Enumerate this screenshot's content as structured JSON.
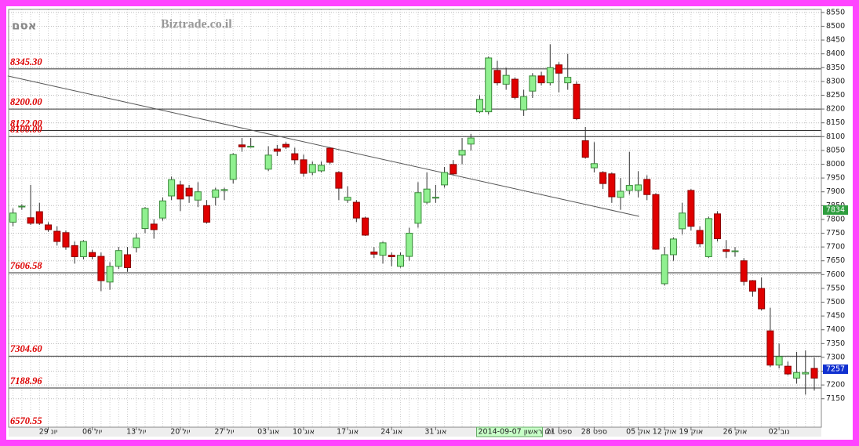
{
  "chart_data": {
    "type": "candlestick",
    "title": "אסם",
    "watermark": "Biztrade.co.il",
    "x": [
      0,
      1,
      2,
      3,
      4,
      5,
      6,
      7,
      8,
      9,
      10,
      11,
      12,
      13,
      14,
      15,
      16,
      17,
      18,
      19,
      20,
      21,
      22,
      23,
      24,
      25,
      26,
      27,
      29,
      30,
      31,
      32,
      33,
      34,
      35,
      36,
      37,
      38,
      39,
      40,
      41,
      42,
      43,
      44,
      45,
      46,
      47,
      48,
      49,
      50,
      51,
      52,
      53,
      54,
      55,
      56,
      57,
      58,
      59,
      60,
      61,
      62,
      63,
      64,
      65,
      66,
      67,
      68,
      69,
      70,
      71,
      72,
      73,
      74,
      75,
      76,
      77,
      78,
      79,
      80,
      81,
      82,
      83,
      84,
      85,
      86,
      87,
      88,
      89,
      90,
      91
    ],
    "series": [
      {
        "open": [
          7790,
          7845,
          7806,
          7828,
          7780,
          7757,
          7752,
          7705,
          7665,
          7680,
          7666,
          7573,
          7630,
          7672,
          7698,
          7767,
          7783,
          7805,
          7885,
          7925,
          7913,
          7870,
          7850,
          7880,
          7905,
          7945,
          8070,
          8062,
          7982,
          8055,
          8072,
          8038,
          8016,
          7970,
          7976,
          8058,
          7970,
          7870,
          7862,
          7805,
          7682,
          7670,
          7670,
          7630,
          7666,
          7786,
          7862,
          7878,
          7925,
          7999,
          8033,
          8073,
          8190,
          8190,
          8340,
          8290,
          8308,
          8197,
          8265,
          8320,
          8295,
          8360,
          8295,
          8290,
          8085,
          7987,
          7970,
          7965,
          7880,
          7905,
          7905,
          7945,
          7890,
          7567,
          7672,
          7766,
          7905,
          7760,
          7665,
          7820,
          7690,
          7683,
          7650,
          7578,
          7550,
          7396,
          7272,
          7268,
          7225,
          7240,
          7260
        ],
        "high": [
          7840,
          7855,
          7925,
          7860,
          7790,
          7775,
          7760,
          7720,
          7725,
          7690,
          7680,
          7645,
          7700,
          7700,
          7750,
          7845,
          7800,
          7880,
          7955,
          7940,
          7925,
          7935,
          7870,
          7915,
          7915,
          8040,
          8095,
          8095,
          8065,
          8070,
          8080,
          8060,
          8035,
          8010,
          8010,
          8060,
          7975,
          7920,
          7870,
          7810,
          7700,
          7720,
          7680,
          7680,
          7770,
          7935,
          7970,
          7925,
          7990,
          8015,
          8095,
          8110,
          8250,
          8390,
          8375,
          8350,
          8315,
          8270,
          8330,
          8335,
          8435,
          8370,
          8400,
          8300,
          8135,
          8080,
          7975,
          7970,
          7950,
          8045,
          7975,
          7960,
          7895,
          7700,
          7735,
          7860,
          7910,
          7775,
          7810,
          7830,
          7725,
          7700,
          7660,
          7580,
          7590,
          7480,
          7350,
          7285,
          7320,
          7325,
          7300
        ],
        "low": [
          7775,
          7835,
          7780,
          7780,
          7755,
          7705,
          7690,
          7640,
          7655,
          7655,
          7540,
          7545,
          7620,
          7610,
          7680,
          7750,
          7730,
          7795,
          7870,
          7830,
          7860,
          7845,
          7785,
          7850,
          7870,
          7930,
          8045,
          8060,
          7975,
          8030,
          8055,
          8000,
          7955,
          7960,
          7970,
          8000,
          7870,
          7860,
          7790,
          7740,
          7660,
          7640,
          7630,
          7625,
          7650,
          7770,
          7855,
          7860,
          7915,
          7960,
          8000,
          8050,
          8185,
          8180,
          8285,
          8270,
          8235,
          8175,
          8240,
          8285,
          8285,
          8260,
          8270,
          8160,
          8020,
          7970,
          7910,
          7860,
          7835,
          7890,
          7880,
          7870,
          7690,
          7560,
          7650,
          7745,
          7760,
          7700,
          7660,
          7720,
          7660,
          7665,
          7560,
          7520,
          7470,
          7265,
          7260,
          7235,
          7205,
          7165,
          7180
        ],
        "close": [
          7823,
          7848,
          7786,
          7786,
          7763,
          7720,
          7700,
          7665,
          7720,
          7665,
          7578,
          7630,
          7687,
          7625,
          7732,
          7840,
          7763,
          7867,
          7944,
          7874,
          7885,
          7900,
          7790,
          7907,
          7908,
          8035,
          8063,
          8065,
          8033,
          8047,
          8062,
          8016,
          7967,
          7999,
          7996,
          8007,
          7913,
          7880,
          7805,
          7743,
          7674,
          7715,
          7665,
          7670,
          7750,
          7897,
          7910,
          7880,
          7970,
          7965,
          8050,
          8095,
          8235,
          8385,
          8295,
          8322,
          8242,
          8245,
          8320,
          8295,
          8350,
          8330,
          8315,
          8165,
          8025,
          8002,
          7930,
          7882,
          7902,
          7923,
          7925,
          7890,
          7692,
          7672,
          7729,
          7823,
          7775,
          7712,
          7803,
          7730,
          7684,
          7686,
          7575,
          7540,
          7476,
          7272,
          7303,
          7240,
          7245,
          7245,
          7225
        ]
      }
    ],
    "up_color": "#90f090",
    "down_color": "#e00000",
    "levels": [
      {
        "value": 8345.3,
        "label": "8345.30"
      },
      {
        "value": 8200,
        "label": "8200.00"
      },
      {
        "value": 8122,
        "label": "8122.00"
      },
      {
        "value": 8100,
        "label": "8100.00"
      },
      {
        "value": 7606.58,
        "label": "7606.58"
      },
      {
        "value": 7304.6,
        "label": "7304.60"
      },
      {
        "value": 7188.96,
        "label": "7188.96"
      },
      {
        "value": 6570.55,
        "label": "6570.55"
      }
    ],
    "trendline": {
      "x": [
        -0.6,
        71.1
      ],
      "y": [
        8320,
        7811
      ]
    },
    "price_tags": [
      {
        "value": 7834,
        "color": "#2e9e3e"
      },
      {
        "value": 7257,
        "color": "#1030d0"
      }
    ],
    "highlight": {
      "x": 53,
      "label": "2014-09-07 יום ראשון"
    },
    "xlim": [
      -0.5,
      91.8
    ],
    "xticks": [
      {
        "value": 4,
        "label": "29 יונ"
      },
      {
        "value": 9,
        "label": "06 יול"
      },
      {
        "value": 14,
        "label": "13 יול"
      },
      {
        "value": 19,
        "label": "20 יול"
      },
      {
        "value": 24,
        "label": "27 יול"
      },
      {
        "value": 29,
        "label": "03 אוג"
      },
      {
        "value": 33,
        "label": "10 אוג"
      },
      {
        "value": 38,
        "label": "17 אוג"
      },
      {
        "value": 43,
        "label": "24 אוג"
      },
      {
        "value": 48,
        "label": "31 אוג"
      },
      {
        "value": 62,
        "label": "21 ספט"
      },
      {
        "value": 66,
        "label": "28 ספט"
      },
      {
        "value": 71,
        "label": "05 אוק"
      },
      {
        "value": 74,
        "label": "12 אוק"
      },
      {
        "value": 77,
        "label": "19 אוק"
      },
      {
        "value": 82,
        "label": "26 אוק"
      },
      {
        "value": 87,
        "label": "02 נוב"
      }
    ],
    "ylim": [
      7047,
      8561
    ],
    "yticks": [
      7150,
      7200,
      7250,
      7300,
      7350,
      7400,
      7450,
      7500,
      7550,
      7600,
      7650,
      7700,
      7750,
      7800,
      7850,
      7900,
      7950,
      8000,
      8050,
      8100,
      8150,
      8200,
      8250,
      8300,
      8350,
      8400,
      8450,
      8500,
      8550
    ],
    "grid": true
  }
}
